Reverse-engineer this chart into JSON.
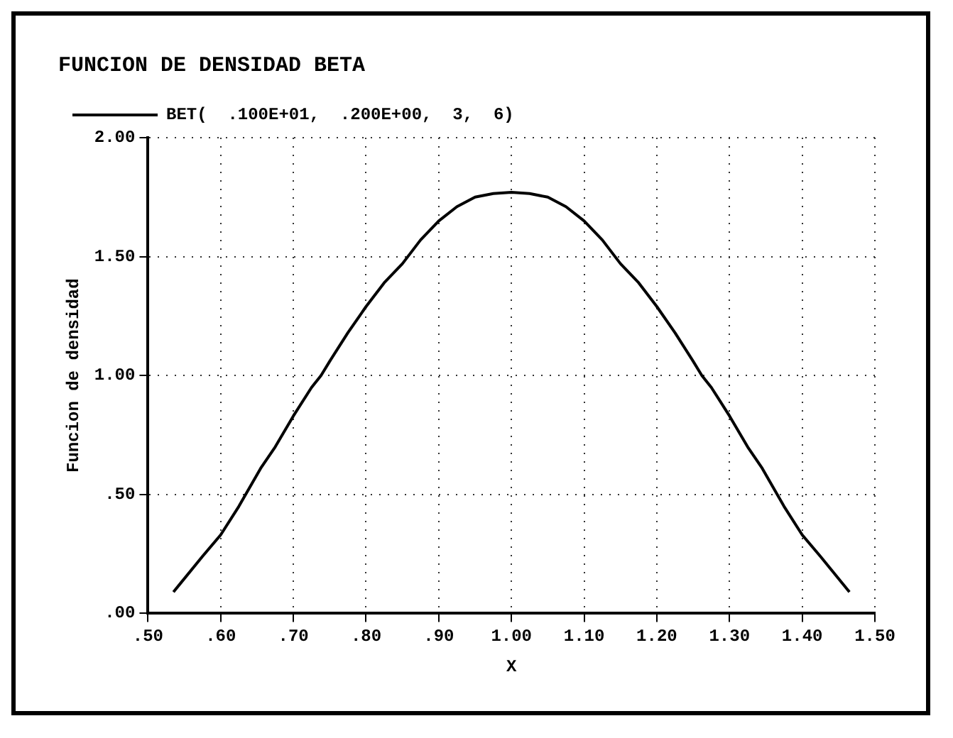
{
  "chart_data": {
    "type": "line",
    "title": "FUNCION DE DENSIDAD BETA",
    "xlabel": "X",
    "ylabel": "Funcion de densidad",
    "series": [
      {
        "name": "BET(  .100E+01,  .200E+00,  3,  6)",
        "color": "#000000",
        "x": [
          0.535,
          0.575,
          0.6,
          0.625,
          0.655,
          0.675,
          0.7,
          0.725,
          0.738,
          0.75,
          0.775,
          0.8,
          0.825,
          0.85,
          0.875,
          0.9,
          0.925,
          0.95,
          0.975,
          1.0,
          1.025,
          1.05,
          1.075,
          1.1,
          1.125,
          1.15,
          1.175,
          1.2,
          1.225,
          1.25,
          1.262,
          1.275,
          1.3,
          1.325,
          1.345,
          1.375,
          1.4,
          1.425,
          1.465
        ],
        "values": [
          0.09,
          0.24,
          0.33,
          0.45,
          0.61,
          0.7,
          0.83,
          0.95,
          1.0,
          1.06,
          1.18,
          1.29,
          1.39,
          1.47,
          1.57,
          1.65,
          1.71,
          1.75,
          1.765,
          1.77,
          1.765,
          1.75,
          1.71,
          1.65,
          1.57,
          1.47,
          1.39,
          1.29,
          1.18,
          1.06,
          1.0,
          0.95,
          0.83,
          0.7,
          0.61,
          0.45,
          0.33,
          0.24,
          0.09
        ]
      }
    ],
    "xlim": [
      0.5,
      1.5
    ],
    "xticks": [
      {
        "value": 0.5,
        "label": ".50"
      },
      {
        "value": 0.6,
        "label": ".60"
      },
      {
        "value": 0.7,
        "label": ".70"
      },
      {
        "value": 0.8,
        "label": ".80"
      },
      {
        "value": 0.9,
        "label": ".90"
      },
      {
        "value": 1.0,
        "label": "1.00"
      },
      {
        "value": 1.1,
        "label": "1.10"
      },
      {
        "value": 1.2,
        "label": "1.20"
      },
      {
        "value": 1.3,
        "label": "1.30"
      },
      {
        "value": 1.4,
        "label": "1.40"
      },
      {
        "value": 1.5,
        "label": "1.50"
      }
    ],
    "ylim": [
      0,
      2
    ],
    "yticks": [
      {
        "value": 0,
        "label": ".00"
      },
      {
        "value": 0.5,
        "label": ".50"
      },
      {
        "value": 1.0,
        "label": "1.00"
      },
      {
        "value": 1.5,
        "label": "1.50"
      },
      {
        "value": 2.0,
        "label": "2.00"
      }
    ],
    "grid": true,
    "legend": "top left",
    "marker": "none",
    "line_style": "solid"
  }
}
